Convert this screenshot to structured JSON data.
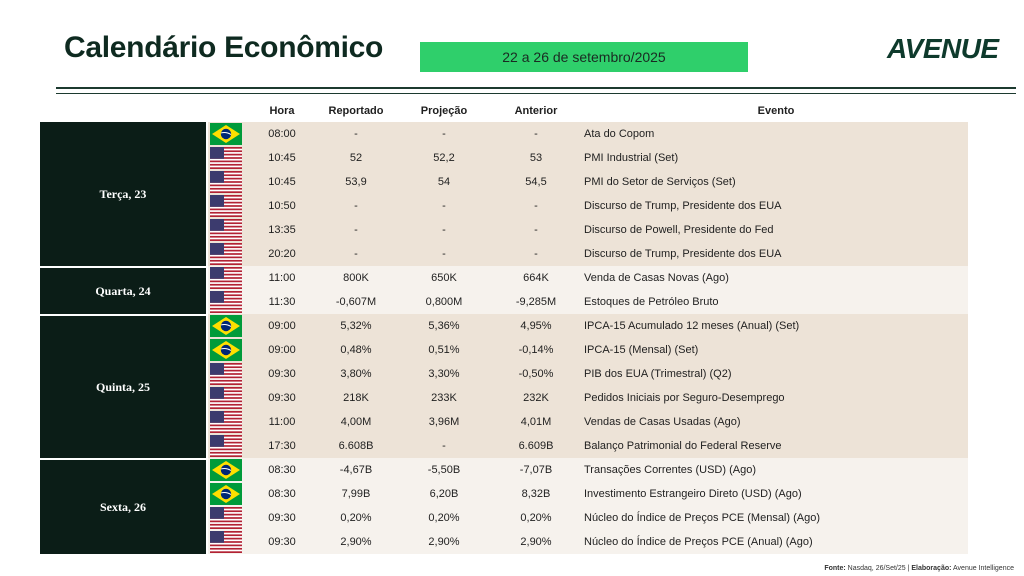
{
  "header": {
    "title": "Calendário Econômico",
    "date_range": "22 a 26 de setembro/2025",
    "logo": "AVENUE"
  },
  "columns": {
    "hora": "Hora",
    "reportado": "Reportado",
    "projecao": "Projeção",
    "anterior": "Anterior",
    "evento": "Evento"
  },
  "days": [
    {
      "label": "Terça, 23",
      "rows": 6
    },
    {
      "label": "Quarta, 24",
      "rows": 2
    },
    {
      "label": "Quinta, 25",
      "rows": 6
    },
    {
      "label": "Sexta, 26",
      "rows": 4
    }
  ],
  "events": [
    {
      "flag": "br-flag-icon",
      "hora": "08:00",
      "reportado": "-",
      "projecao": "-",
      "anterior": "-",
      "evento": "Ata do Copom"
    },
    {
      "flag": "us-flag-icon",
      "hora": "10:45",
      "reportado": "52",
      "projecao": "52,2",
      "anterior": "53",
      "evento": "PMI Industrial (Set)"
    },
    {
      "flag": "us-flag-icon",
      "hora": "10:45",
      "reportado": "53,9",
      "projecao": "54",
      "anterior": "54,5",
      "evento": "PMI do Setor de Serviços (Set)"
    },
    {
      "flag": "us-flag-icon",
      "hora": "10:50",
      "reportado": "-",
      "projecao": "-",
      "anterior": "-",
      "evento": "Discurso de Trump, Presidente dos EUA"
    },
    {
      "flag": "us-flag-icon",
      "hora": "13:35",
      "reportado": "-",
      "projecao": "-",
      "anterior": "-",
      "evento": "Discurso de Powell, Presidente do Fed"
    },
    {
      "flag": "us-flag-icon",
      "hora": "20:20",
      "reportado": "-",
      "projecao": "-",
      "anterior": "-",
      "evento": "Discurso de Trump, Presidente dos EUA"
    },
    {
      "flag": "us-flag-icon",
      "hora": "11:00",
      "reportado": "800K",
      "projecao": "650K",
      "anterior": "664K",
      "evento": "Venda de Casas Novas (Ago)"
    },
    {
      "flag": "us-flag-icon",
      "hora": "11:30",
      "reportado": "-0,607M",
      "projecao": "0,800M",
      "anterior": "-9,285M",
      "evento": "Estoques de Petróleo Bruto"
    },
    {
      "flag": "br-flag-icon",
      "hora": "09:00",
      "reportado": "5,32%",
      "projecao": "5,36%",
      "anterior": "4,95%",
      "evento": "IPCA-15 Acumulado 12 meses (Anual) (Set)"
    },
    {
      "flag": "br-flag-icon",
      "hora": "09:00",
      "reportado": "0,48%",
      "projecao": "0,51%",
      "anterior": "-0,14%",
      "evento": "IPCA-15 (Mensal) (Set)"
    },
    {
      "flag": "us-flag-icon",
      "hora": "09:30",
      "reportado": "3,80%",
      "projecao": "3,30%",
      "anterior": "-0,50%",
      "evento": "PIB dos EUA (Trimestral) (Q2)"
    },
    {
      "flag": "us-flag-icon",
      "hora": "09:30",
      "reportado": "218K",
      "projecao": "233K",
      "anterior": "232K",
      "evento": "Pedidos Iniciais por Seguro-Desemprego"
    },
    {
      "flag": "us-flag-icon",
      "hora": "11:00",
      "reportado": "4,00M",
      "projecao": "3,96M",
      "anterior": "4,01M",
      "evento": "Vendas de Casas Usadas (Ago)"
    },
    {
      "flag": "us-flag-icon",
      "hora": "17:30",
      "reportado": "6.608B",
      "projecao": "-",
      "anterior": "6.609B",
      "evento": "Balanço Patrimonial do Federal Reserve"
    },
    {
      "flag": "br-flag-icon",
      "hora": "08:30",
      "reportado": "-4,67B",
      "projecao": "-5,50B",
      "anterior": "-7,07B",
      "evento": "Transações Correntes (USD) (Ago)"
    },
    {
      "flag": "br-flag-icon",
      "hora": "08:30",
      "reportado": "7,99B",
      "projecao": "6,20B",
      "anterior": "8,32B",
      "evento": "Investimento Estrangeiro Direto (USD) (Ago)"
    },
    {
      "flag": "us-flag-icon",
      "hora": "09:30",
      "reportado": "0,20%",
      "projecao": "0,20%",
      "anterior": "0,20%",
      "evento": "Núcleo do Índice de Preços PCE (Mensal) (Ago)"
    },
    {
      "flag": "us-flag-icon",
      "hora": "09:30",
      "reportado": "2,90%",
      "projecao": "2,90%",
      "anterior": "2,90%",
      "evento": "Núcleo do Índice de Preços PCE (Anual) (Ago)"
    }
  ],
  "footer": {
    "fonte_label": "Fonte:",
    "fonte_text": " Nasdaq, 26/Set/25 | ",
    "elaboracao_label": "Elaboração:",
    "elaboracao_text": " Avenue Intelligence"
  },
  "colors": {
    "accent_green": "#2fcf6b",
    "dark_green": "#0b1d17",
    "row_tan": "#ede3d7",
    "row_light": "#f6f2ed"
  }
}
